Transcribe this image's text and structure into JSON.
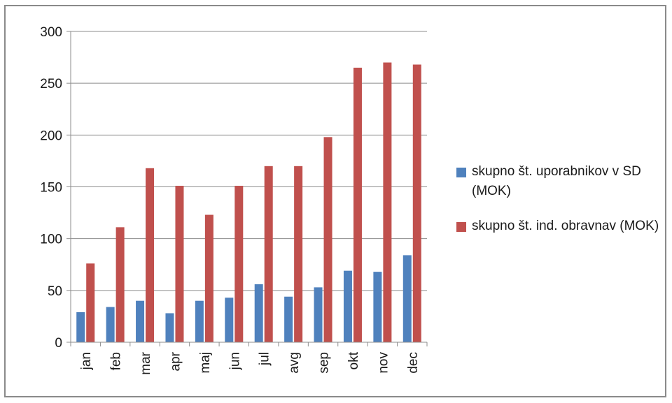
{
  "chart_data": {
    "type": "bar",
    "categories": [
      "jan",
      "feb",
      "mar",
      "apr",
      "maj",
      "jun",
      "jul",
      "avg",
      "sep",
      "okt",
      "nov",
      "dec"
    ],
    "series": [
      {
        "name": "skupno št. uporabnikov v SD (MOK)",
        "color": "#4f81bd",
        "values": [
          29,
          34,
          40,
          28,
          40,
          43,
          56,
          44,
          53,
          69,
          68,
          84
        ]
      },
      {
        "name": "skupno št. ind. obravnav (MOK)",
        "color": "#c0504d",
        "values": [
          76,
          111,
          168,
          151,
          123,
          151,
          170,
          170,
          198,
          265,
          270,
          268
        ]
      }
    ],
    "ylim": [
      0,
      300
    ],
    "yticks": [
      "0",
      "50",
      "100",
      "150",
      "200",
      "250",
      "300"
    ],
    "grid": true,
    "legend_position": "right"
  }
}
